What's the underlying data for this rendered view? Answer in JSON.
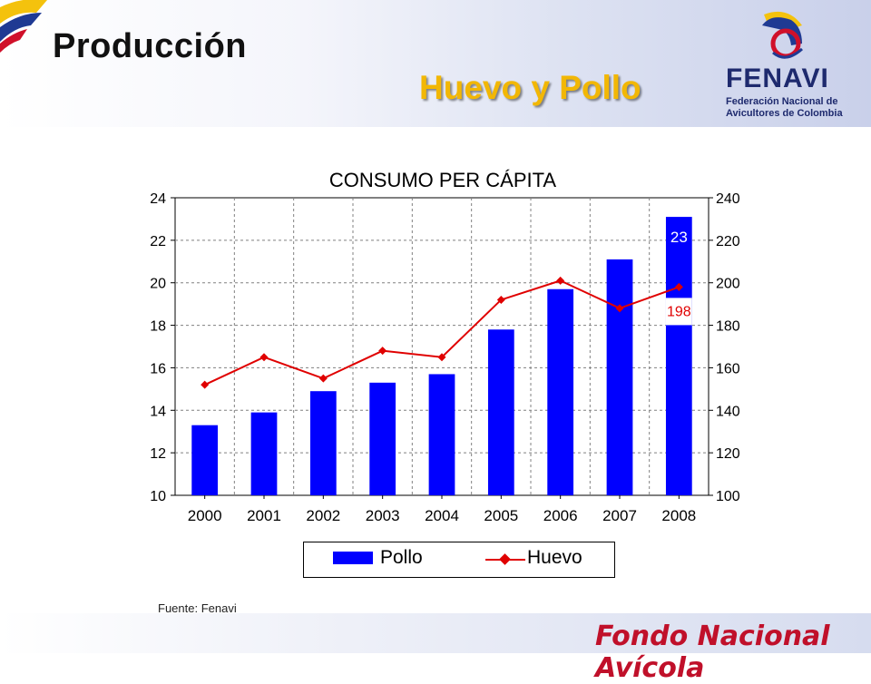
{
  "header": {
    "title": "Producción",
    "subtitle": "Huevo y Pollo",
    "brand": "FENAVI",
    "brand_line1": "Federación Nacional de",
    "brand_line2": "Avicultores de Colombia"
  },
  "footer": {
    "source": "Fuente: Fenavi",
    "organization": "Fondo Nacional Avícola"
  },
  "colors": {
    "pollo": "#0000ff",
    "huevo": "#e00000",
    "subtitle": "#f2b705",
    "footer_text": "#c0102a"
  },
  "chart_data": {
    "type": "bar",
    "title": "CONSUMO PER CÁPITA",
    "categories": [
      "2000",
      "2001",
      "2002",
      "2003",
      "2004",
      "2005",
      "2006",
      "2007",
      "2008"
    ],
    "series": [
      {
        "name": "Pollo",
        "type": "bar",
        "axis": "left",
        "values": [
          13.3,
          13.9,
          14.9,
          15.3,
          15.7,
          17.8,
          19.7,
          21.1,
          23.1
        ]
      },
      {
        "name": "Huevo",
        "type": "line",
        "axis": "right",
        "values": [
          152,
          165,
          155,
          168,
          165,
          192,
          201,
          188,
          198
        ]
      }
    ],
    "y_left": {
      "min": 10,
      "max": 24,
      "ticks": [
        10,
        12,
        14,
        16,
        18,
        20,
        22,
        24
      ]
    },
    "y_right": {
      "min": 100,
      "max": 240,
      "ticks": [
        100,
        120,
        140,
        160,
        180,
        200,
        220,
        240
      ]
    },
    "annotations": [
      {
        "label": "23",
        "series": "Pollo",
        "category": "2008"
      },
      {
        "label": "198",
        "series": "Huevo",
        "category": "2008"
      }
    ],
    "grid": true,
    "legend": "bottom"
  }
}
